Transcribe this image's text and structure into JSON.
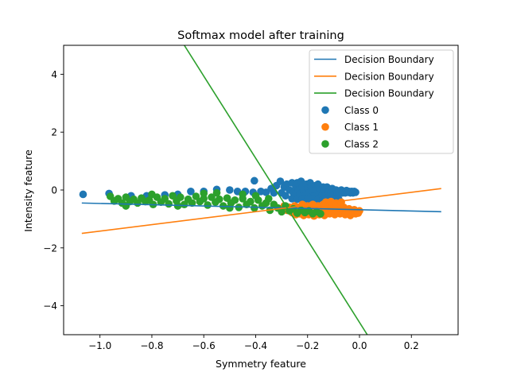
{
  "chart_data": {
    "type": "scatter",
    "title": "Softmax model after training",
    "xlabel": "Symmetry feature",
    "ylabel": "Intensity feature",
    "xlim": [
      -1.14,
      0.38
    ],
    "ylim": [
      -5.0,
      5.0
    ],
    "xticks": [
      -1.0,
      -0.8,
      -0.6,
      -0.4,
      -0.2,
      0.0,
      0.2
    ],
    "xtick_labels": [
      "−1.0",
      "−0.8",
      "−0.6",
      "−0.4",
      "−0.2",
      "0.0",
      "0.2"
    ],
    "yticks": [
      -4,
      -2,
      0,
      2,
      4
    ],
    "ytick_labels": [
      "−4",
      "−2",
      "0",
      "2",
      "4"
    ],
    "grid": false,
    "legend_position": "top-right",
    "lines": [
      {
        "name": "Decision Boundary",
        "color": "#1f77b4",
        "x": [
          -1.07,
          0.315
        ],
        "y": [
          -0.45,
          -0.75
        ]
      },
      {
        "name": "Decision Boundary",
        "color": "#ff7f0e",
        "x": [
          -1.07,
          0.315
        ],
        "y": [
          -1.5,
          0.05
        ]
      },
      {
        "name": "Decision Boundary",
        "color": "#2ca02c",
        "x": [
          -0.675,
          0.03
        ],
        "y": [
          5.0,
          -5.0
        ]
      }
    ],
    "scatter_series": [
      {
        "name": "Class 0",
        "color": "#1f77b4",
        "points": [
          [
            -1.065,
            -0.15
          ],
          [
            -0.965,
            -0.12
          ],
          [
            -0.88,
            -0.2
          ],
          [
            -0.82,
            -0.2
          ],
          [
            -0.75,
            -0.17
          ],
          [
            -0.7,
            -0.15
          ],
          [
            -0.65,
            -0.05
          ],
          [
            -0.6,
            -0.05
          ],
          [
            -0.55,
            0.02
          ],
          [
            -0.5,
            0.0
          ],
          [
            -0.47,
            -0.05
          ],
          [
            -0.44,
            -0.05
          ],
          [
            -0.41,
            -0.08
          ],
          [
            -0.405,
            0.32
          ],
          [
            -0.38,
            -0.05
          ],
          [
            -0.36,
            -0.08
          ],
          [
            -0.34,
            0.05
          ],
          [
            -0.33,
            -0.1
          ],
          [
            -0.32,
            0.15
          ],
          [
            -0.305,
            0.3
          ],
          [
            -0.3,
            -0.1
          ],
          [
            -0.29,
            0.1
          ],
          [
            -0.285,
            -0.2
          ],
          [
            -0.28,
            0.2
          ],
          [
            -0.27,
            0.0
          ],
          [
            -0.26,
            0.25
          ],
          [
            -0.255,
            -0.1
          ],
          [
            -0.25,
            -0.2
          ],
          [
            -0.245,
            0.1
          ],
          [
            -0.24,
            0.25
          ],
          [
            -0.235,
            0.0
          ],
          [
            -0.23,
            -0.15
          ],
          [
            -0.225,
            0.3
          ],
          [
            -0.22,
            0.1
          ],
          [
            -0.215,
            -0.05
          ],
          [
            -0.21,
            -0.2
          ],
          [
            -0.205,
            0.2
          ],
          [
            -0.2,
            0.05
          ],
          [
            -0.195,
            -0.1
          ],
          [
            -0.19,
            0.25
          ],
          [
            -0.185,
            0.1
          ],
          [
            -0.18,
            -0.05
          ],
          [
            -0.175,
            -0.2
          ],
          [
            -0.17,
            0.15
          ],
          [
            -0.165,
            0.0
          ],
          [
            -0.16,
            0.2
          ],
          [
            -0.155,
            -0.1
          ],
          [
            -0.15,
            0.05
          ],
          [
            -0.145,
            -0.2
          ],
          [
            -0.14,
            0.1
          ],
          [
            -0.135,
            0.0
          ],
          [
            -0.13,
            -0.15
          ],
          [
            -0.125,
            0.1
          ],
          [
            -0.12,
            -0.05
          ],
          [
            -0.115,
            0.0
          ],
          [
            -0.11,
            -0.1
          ],
          [
            -0.105,
            0.05
          ],
          [
            -0.1,
            -0.15
          ],
          [
            -0.095,
            -0.05
          ],
          [
            -0.09,
            0.0
          ],
          [
            -0.085,
            -0.1
          ],
          [
            -0.08,
            -0.05
          ],
          [
            -0.075,
            -0.12
          ],
          [
            -0.07,
            0.0
          ],
          [
            -0.065,
            -0.1
          ],
          [
            -0.06,
            -0.05
          ],
          [
            -0.055,
            -0.1
          ],
          [
            -0.05,
            -0.02
          ],
          [
            -0.045,
            -0.08
          ],
          [
            -0.04,
            -0.05
          ],
          [
            -0.035,
            -0.1
          ],
          [
            -0.03,
            -0.05
          ],
          [
            -0.025,
            -0.1
          ],
          [
            -0.02,
            -0.05
          ],
          [
            -0.015,
            -0.08
          ],
          [
            -0.26,
            -0.3
          ],
          [
            -0.24,
            -0.32
          ],
          [
            -0.22,
            -0.3
          ],
          [
            -0.2,
            -0.32
          ],
          [
            -0.18,
            -0.3
          ],
          [
            -0.16,
            -0.32
          ],
          [
            -0.14,
            -0.3
          ],
          [
            -0.12,
            -0.32
          ],
          [
            -0.1,
            -0.3
          ],
          [
            -0.08,
            -0.32
          ]
        ]
      },
      {
        "name": "Class 1",
        "color": "#ff7f0e",
        "points": [
          [
            -0.29,
            -0.55
          ],
          [
            -0.28,
            -0.7
          ],
          [
            -0.27,
            -0.6
          ],
          [
            -0.26,
            -0.78
          ],
          [
            -0.25,
            -0.55
          ],
          [
            -0.245,
            -0.85
          ],
          [
            -0.24,
            -0.68
          ],
          [
            -0.235,
            -0.6
          ],
          [
            -0.23,
            -0.82
          ],
          [
            -0.225,
            -0.7
          ],
          [
            -0.22,
            -0.5
          ],
          [
            -0.215,
            -0.88
          ],
          [
            -0.21,
            -0.6
          ],
          [
            -0.205,
            -0.75
          ],
          [
            -0.2,
            -0.55
          ],
          [
            -0.195,
            -0.85
          ],
          [
            -0.19,
            -0.65
          ],
          [
            -0.185,
            -0.78
          ],
          [
            -0.18,
            -0.5
          ],
          [
            -0.175,
            -0.9
          ],
          [
            -0.17,
            -0.62
          ],
          [
            -0.165,
            -0.72
          ],
          [
            -0.16,
            -0.55
          ],
          [
            -0.155,
            -0.85
          ],
          [
            -0.15,
            -0.68
          ],
          [
            -0.145,
            -0.78
          ],
          [
            -0.14,
            -0.5
          ],
          [
            -0.135,
            -0.88
          ],
          [
            -0.13,
            -0.62
          ],
          [
            -0.125,
            -0.72
          ],
          [
            -0.12,
            -0.55
          ],
          [
            -0.115,
            -0.82
          ],
          [
            -0.11,
            -0.65
          ],
          [
            -0.105,
            -0.78
          ],
          [
            -0.1,
            -0.52
          ],
          [
            -0.095,
            -0.85
          ],
          [
            -0.09,
            -0.62
          ],
          [
            -0.085,
            -0.75
          ],
          [
            -0.08,
            -0.55
          ],
          [
            -0.075,
            -0.82
          ],
          [
            -0.07,
            -0.68
          ],
          [
            -0.065,
            -0.78
          ],
          [
            -0.06,
            -0.6
          ],
          [
            -0.055,
            -0.85
          ],
          [
            -0.05,
            -0.7
          ],
          [
            -0.045,
            -0.8
          ],
          [
            -0.04,
            -0.65
          ],
          [
            -0.035,
            -0.88
          ],
          [
            -0.03,
            -0.72
          ],
          [
            -0.025,
            -0.78
          ],
          [
            -0.02,
            -0.68
          ],
          [
            -0.015,
            -0.82
          ],
          [
            -0.01,
            -0.75
          ],
          [
            -0.005,
            -0.8
          ],
          [
            0.0,
            -0.72
          ],
          [
            -0.13,
            -0.42
          ],
          [
            -0.11,
            -0.4
          ],
          [
            -0.09,
            -0.45
          ],
          [
            -0.07,
            -0.42
          ]
        ]
      },
      {
        "name": "Class 2",
        "color": "#2ca02c",
        "points": [
          [
            -0.945,
            -0.38
          ],
          [
            -0.93,
            -0.3
          ],
          [
            -0.915,
            -0.45
          ],
          [
            -0.9,
            -0.25
          ],
          [
            -0.885,
            -0.4
          ],
          [
            -0.87,
            -0.32
          ],
          [
            -0.855,
            -0.45
          ],
          [
            -0.84,
            -0.28
          ],
          [
            -0.825,
            -0.4
          ],
          [
            -0.81,
            -0.35
          ],
          [
            -0.795,
            -0.5
          ],
          [
            -0.78,
            -0.25
          ],
          [
            -0.765,
            -0.42
          ],
          [
            -0.75,
            -0.3
          ],
          [
            -0.735,
            -0.48
          ],
          [
            -0.72,
            -0.2
          ],
          [
            -0.705,
            -0.38
          ],
          [
            -0.69,
            -0.25
          ],
          [
            -0.675,
            -0.5
          ],
          [
            -0.66,
            -0.32
          ],
          [
            -0.645,
            -0.45
          ],
          [
            -0.63,
            -0.22
          ],
          [
            -0.615,
            -0.4
          ],
          [
            -0.6,
            -0.3
          ],
          [
            -0.585,
            -0.52
          ],
          [
            -0.57,
            -0.25
          ],
          [
            -0.555,
            -0.42
          ],
          [
            -0.54,
            -0.32
          ],
          [
            -0.525,
            -0.55
          ],
          [
            -0.51,
            -0.28
          ],
          [
            -0.495,
            -0.45
          ],
          [
            -0.48,
            -0.35
          ],
          [
            -0.465,
            -0.6
          ],
          [
            -0.45,
            -0.3
          ],
          [
            -0.435,
            -0.5
          ],
          [
            -0.42,
            -0.4
          ],
          [
            -0.405,
            -0.62
          ],
          [
            -0.39,
            -0.35
          ],
          [
            -0.375,
            -0.55
          ],
          [
            -0.36,
            -0.45
          ],
          [
            -0.345,
            -0.7
          ],
          [
            -0.33,
            -0.5
          ],
          [
            -0.315,
            -0.62
          ],
          [
            -0.3,
            -0.75
          ],
          [
            -0.285,
            -0.55
          ],
          [
            -0.27,
            -0.72
          ],
          [
            -0.255,
            -0.65
          ],
          [
            -0.24,
            -0.8
          ],
          [
            -0.225,
            -0.7
          ],
          [
            -0.21,
            -0.78
          ],
          [
            -0.195,
            -0.72
          ],
          [
            -0.18,
            -0.82
          ],
          [
            -0.165,
            -0.75
          ],
          [
            -0.15,
            -0.82
          ],
          [
            -0.96,
            -0.22
          ],
          [
            -0.9,
            -0.55
          ],
          [
            -0.8,
            -0.15
          ],
          [
            -0.7,
            -0.55
          ],
          [
            -0.6,
            -0.12
          ],
          [
            -0.5,
            -0.62
          ],
          [
            -0.55,
            -0.1
          ],
          [
            -0.45,
            -0.15
          ],
          [
            -0.4,
            -0.2
          ],
          [
            -0.35,
            -0.3
          ]
        ]
      }
    ]
  }
}
